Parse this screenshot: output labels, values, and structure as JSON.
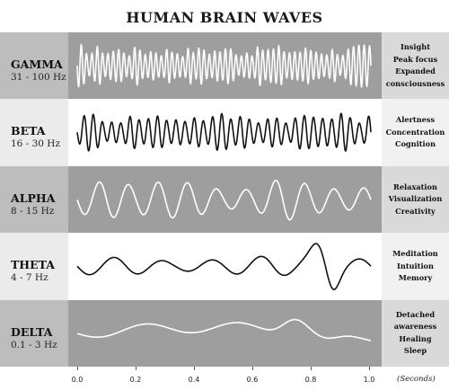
{
  "title": "HUMAN BRAIN WAVES",
  "colors": {
    "dark_label": "#bdbdbd",
    "dark_wave": "#9e9e9e",
    "dark_desc": "#d9d9d9",
    "light_label": "#ebebeb",
    "light_wave": "#ffffff",
    "light_desc": "#f1f1f1",
    "wave_on_dark": "#ffffff",
    "wave_on_light": "#111111"
  },
  "bands": [
    {
      "name": "GAMMA",
      "range": "31 - 100 Hz",
      "descriptors": [
        "Insight",
        "Peak focus",
        "Expanded",
        "consciousness"
      ],
      "shade": "dark",
      "amplitude": 0.8,
      "cycles": 55
    },
    {
      "name": "BETA",
      "range": "16 - 30 Hz",
      "descriptors": [
        "Alertness",
        "Concentration",
        "Cognition"
      ],
      "shade": "light",
      "amplitude": 0.75,
      "cycles": 32
    },
    {
      "name": "ALPHA",
      "range": "8 - 15 Hz",
      "descriptors": [
        "Relaxation",
        "Visualization",
        "Creativity"
      ],
      "shade": "dark",
      "amplitude": 0.8,
      "cycles": 10
    },
    {
      "name": "THETA",
      "range": "4 - 7 Hz",
      "descriptors": [
        "Meditation",
        "Intuition",
        "Memory"
      ],
      "shade": "light",
      "amplitude": 0.8,
      "cycles": 6
    },
    {
      "name": "DELTA",
      "range": "0.1 - 3 Hz",
      "descriptors": [
        "Detached",
        "awareness",
        "Healing",
        "Sleep"
      ],
      "shade": "dark",
      "amplitude": 0.8,
      "cycles": 2
    }
  ],
  "axis": {
    "ticks": [
      "0.0",
      "0.2",
      "0.4",
      "0.6",
      "0.8",
      "1.0"
    ],
    "unit": "(Seconds)"
  }
}
